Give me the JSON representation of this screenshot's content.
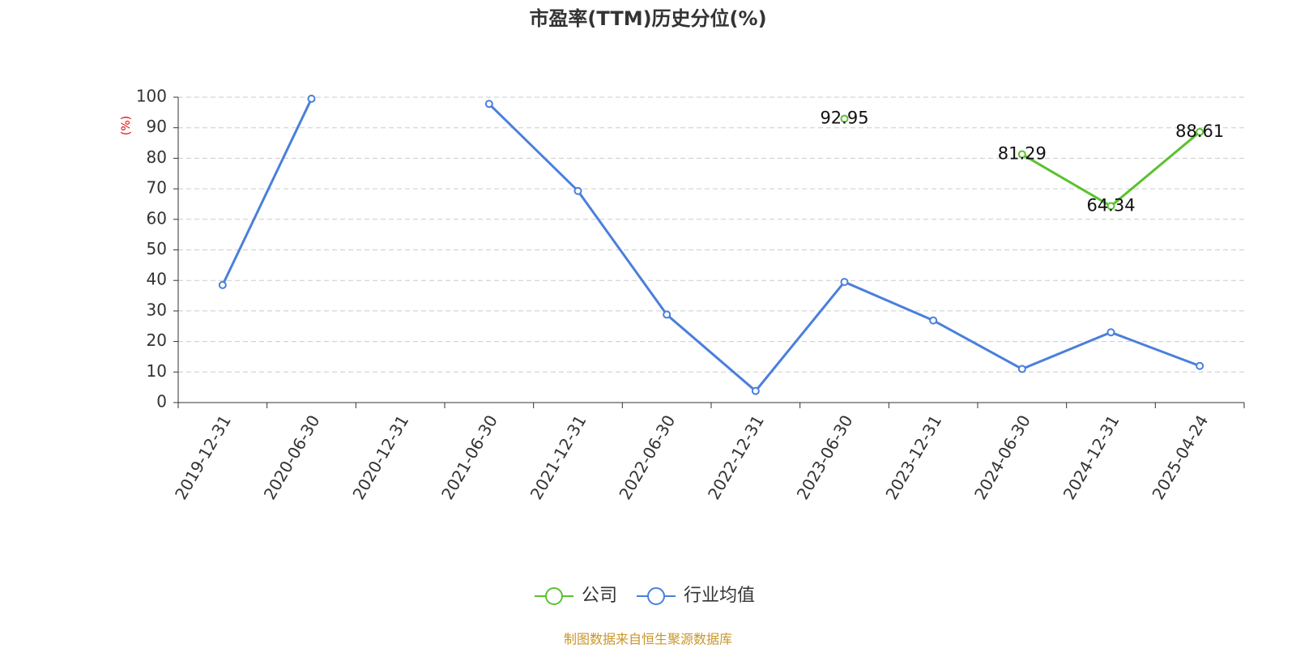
{
  "chart_data": {
    "type": "line",
    "title": "市盈率(TTM)历史分位(%)",
    "y_label": "(%)",
    "categories": [
      "2019-12-31",
      "2020-06-30",
      "2020-12-31",
      "2021-06-30",
      "2021-12-31",
      "2022-06-30",
      "2022-12-31",
      "2023-06-30",
      "2023-12-31",
      "2024-06-30",
      "2024-12-31",
      "2025-04-24"
    ],
    "series": [
      {
        "name": "公司",
        "color": "#5ac22e",
        "labels": true,
        "values": [
          null,
          null,
          null,
          null,
          null,
          null,
          null,
          92.95,
          null,
          81.29,
          64.34,
          88.61
        ]
      },
      {
        "name": "行业均值",
        "color": "#4a7fdc",
        "labels": false,
        "values": [
          38.5,
          99.5,
          null,
          97.8,
          69.3,
          28.8,
          3.8,
          39.5,
          26.9,
          11.0,
          23.0,
          12.0
        ]
      }
    ],
    "ylim": [
      0,
      100
    ],
    "yticks": [
      0,
      10,
      20,
      30,
      40,
      50,
      60,
      70,
      80,
      90,
      100
    ],
    "grid": true,
    "source": "制图数据来自恒生聚源数据库"
  }
}
